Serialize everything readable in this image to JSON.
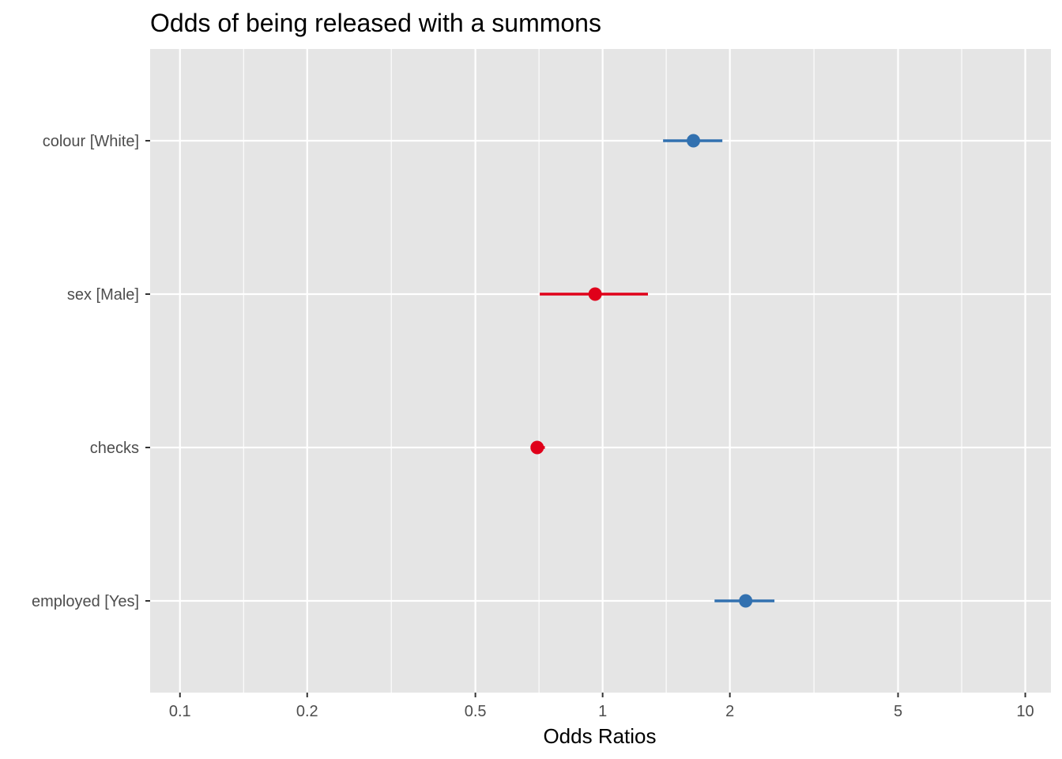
{
  "chart_data": {
    "type": "scatter",
    "title": "Odds of being released with a summons",
    "xlabel": "Odds Ratios",
    "ylabel": "",
    "x_scale": "log",
    "xlim": [
      0.085,
      11.5
    ],
    "x_ticks": [
      0.1,
      0.2,
      0.5,
      1,
      2,
      5,
      10
    ],
    "x_tick_labels": [
      "0.1",
      "0.2",
      "0.5",
      "1",
      "2",
      "5",
      "10"
    ],
    "categories": [
      "colour [White]",
      "sex [Male]",
      "checks",
      "employed [Yes]"
    ],
    "points": [
      {
        "term": "colour [White]",
        "estimate": 1.64,
        "conf_low": 1.39,
        "conf_high": 1.92,
        "color": "#3271b0"
      },
      {
        "term": "sex [Male]",
        "estimate": 0.96,
        "conf_low": 0.71,
        "conf_high": 1.28,
        "color": "#e0001a"
      },
      {
        "term": "checks",
        "estimate": 0.7,
        "conf_low": 0.68,
        "conf_high": 0.73,
        "color": "#e0001a"
      },
      {
        "term": "employed [Yes]",
        "estimate": 2.18,
        "conf_low": 1.84,
        "conf_high": 2.55,
        "color": "#3271b0"
      }
    ],
    "grid": true,
    "legend": "none",
    "colors": {
      "panel": "#e5e5e5",
      "grid": "#ffffff",
      "positive": "#3271b0",
      "negative": "#e0001a"
    }
  }
}
